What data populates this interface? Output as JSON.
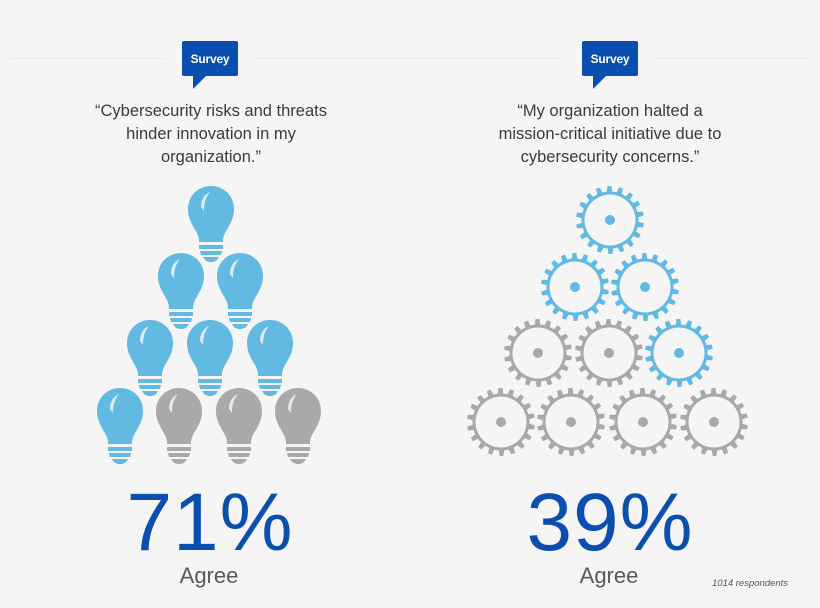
{
  "colors": {
    "background": "#f5f5f5",
    "brand_blue": "#0a4fb0",
    "highlight_blue": "#62b9e2",
    "neutral_gray": "#a8a9ab",
    "quote_text": "#3a3a3a"
  },
  "panels": [
    {
      "badge_label": "Survey",
      "quote": "“Cybersecurity risks and threats hinder innovation in my organization.”",
      "quote_lines": [
        "“Cybersecurity risks and threats",
        "hinder innovation in my",
        "organization.”"
      ],
      "icon_type": "lightbulb-icon",
      "icon_layout_rows": [
        1,
        2,
        3,
        4
      ],
      "icons_total": 10,
      "icons_highlighted": 7,
      "percent": "71%",
      "label": "Agree"
    },
    {
      "badge_label": "Survey",
      "quote": "“My organization halted a mission-critical initiative due to cybersecurity concerns.”",
      "quote_lines": [
        "“My organization halted a",
        "mission-critical initiative due to",
        "cybersecurity concerns.”"
      ],
      "icon_type": "gear-icon",
      "icon_layout_rows": [
        1,
        2,
        3,
        4
      ],
      "icons_total": 10,
      "icons_highlighted": 4,
      "percent": "39%",
      "label": "Agree"
    }
  ],
  "footnote": "1014 respondents"
}
